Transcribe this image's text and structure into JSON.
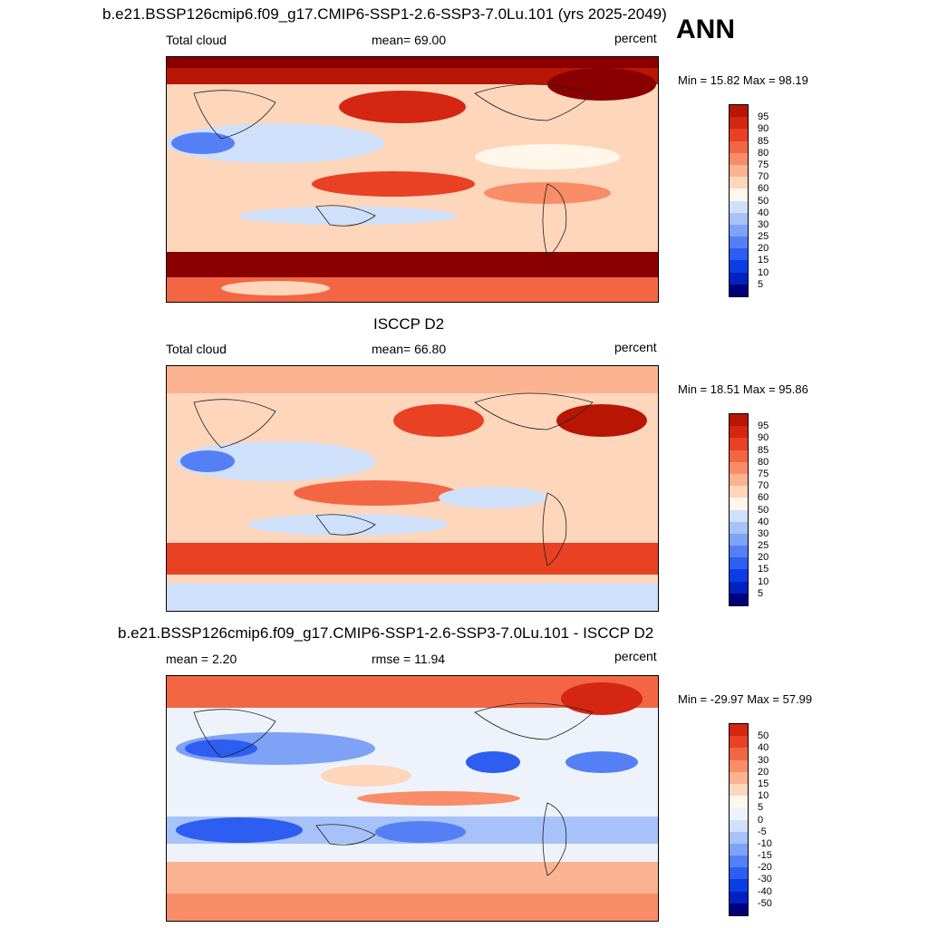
{
  "season": "ANN",
  "colors": {
    "abs_scale": [
      "#00007f",
      "#0022c0",
      "#0a3ee4",
      "#2e5df2",
      "#5580f5",
      "#7ea2f6",
      "#a6c2f8",
      "#cfe0fa",
      "#fff7ea",
      "#fdd6bc",
      "#fcb391",
      "#f98d68",
      "#f36644",
      "#e84124",
      "#d42611",
      "#b81604",
      "#8a0000"
    ],
    "diff_scale": [
      "#00007f",
      "#0022c0",
      "#0a3ee4",
      "#2e5df2",
      "#5580f5",
      "#7ea2f6",
      "#a6c2f8",
      "#cfe0fa",
      "#eef3fb",
      "#fff7ea",
      "#fdd6bc",
      "#fcb391",
      "#f98d68",
      "#f36644",
      "#e84124",
      "#d42611",
      "#b81604",
      "#8a0000"
    ]
  },
  "panels": [
    {
      "title": "b.e21.BSSP126cmip6.f09_g17.CMIP6-SSP1-2.6-SSP3-7.0Lu.101 (yrs 2025-2049)",
      "left_label": "Total cloud",
      "mid_label": "mean=  69.00",
      "units": "percent",
      "minmax": "Min =  15.82 Max =  98.19",
      "levels": [
        "95",
        "90",
        "85",
        "80",
        "75",
        "70",
        "60",
        "50",
        "40",
        "30",
        "25",
        "20",
        "15",
        "10",
        "5"
      ]
    },
    {
      "title": "ISCCP D2",
      "left_label": "Total cloud",
      "mid_label": "mean=  66.80",
      "units": "percent",
      "minmax": "Min =  18.51 Max =  95.86",
      "levels": [
        "95",
        "90",
        "85",
        "80",
        "75",
        "70",
        "60",
        "50",
        "40",
        "30",
        "25",
        "20",
        "15",
        "10",
        "5"
      ]
    },
    {
      "title": "b.e21.BSSP126cmip6.f09_g17.CMIP6-SSP1-2.6-SSP3-7.0Lu.101 - ISCCP D2",
      "left_label": "mean =   2.20",
      "mid_label": "rmse =  11.94",
      "units": "percent",
      "minmax": "Min = -29.97 Max =  57.99",
      "levels": [
        "50",
        "40",
        "30",
        "20",
        "15",
        "10",
        "5",
        "0",
        "-5",
        "-10",
        "-15",
        "-20",
        "-30",
        "-40",
        "-50"
      ]
    }
  ],
  "chart_data": [
    {
      "type": "heatmap",
      "title": "b.e21.BSSP126cmip6.f09_g17.CMIP6-SSP1-2.6-SSP3-7.0Lu.101 (yrs 2025-2049)",
      "variable": "Total cloud",
      "units": "percent",
      "mean": 69.0,
      "min": 15.82,
      "max": 98.19,
      "contour_levels": [
        5,
        10,
        15,
        20,
        25,
        30,
        40,
        50,
        60,
        70,
        75,
        80,
        85,
        90,
        95
      ]
    },
    {
      "type": "heatmap",
      "title": "ISCCP D2",
      "variable": "Total cloud",
      "units": "percent",
      "mean": 66.8,
      "min": 18.51,
      "max": 95.86,
      "contour_levels": [
        5,
        10,
        15,
        20,
        25,
        30,
        40,
        50,
        60,
        70,
        75,
        80,
        85,
        90,
        95
      ]
    },
    {
      "type": "heatmap",
      "title": "b.e21.BSSP126cmip6.f09_g17.CMIP6-SSP1-2.6-SSP3-7.0Lu.101 - ISCCP D2",
      "units": "percent",
      "mean": 2.2,
      "rmse": 11.94,
      "min": -29.97,
      "max": 57.99,
      "contour_levels": [
        -50,
        -40,
        -30,
        -20,
        -15,
        -10,
        -5,
        0,
        5,
        10,
        15,
        20,
        30,
        40,
        50
      ]
    }
  ]
}
